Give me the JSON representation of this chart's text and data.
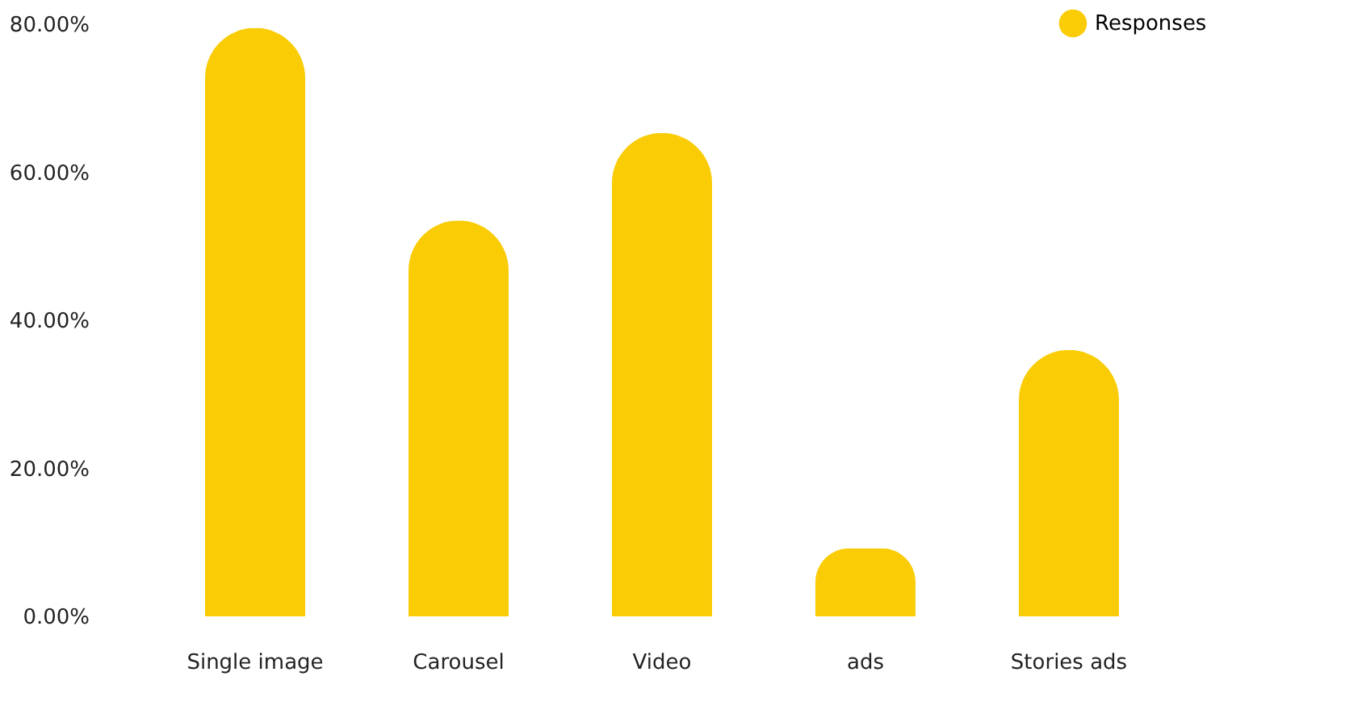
{
  "chart_data": {
    "type": "bar",
    "categories": [
      "Single image",
      "Carousel",
      "Video",
      "ads",
      "Stories ads"
    ],
    "series": [
      {
        "name": "Responses",
        "color": "#facc05",
        "values": [
          79.5,
          53.5,
          65.3,
          9.2,
          36
        ]
      }
    ],
    "ylim": [
      0,
      80
    ],
    "yticks": [
      {
        "value": 0,
        "label": "0.00%"
      },
      {
        "value": 20,
        "label": "20.00%"
      },
      {
        "value": 40,
        "label": "40.00%"
      },
      {
        "value": 60,
        "label": "60.00%"
      },
      {
        "value": 80,
        "label": "80.00%"
      }
    ],
    "grid": false,
    "legend": "top right"
  }
}
